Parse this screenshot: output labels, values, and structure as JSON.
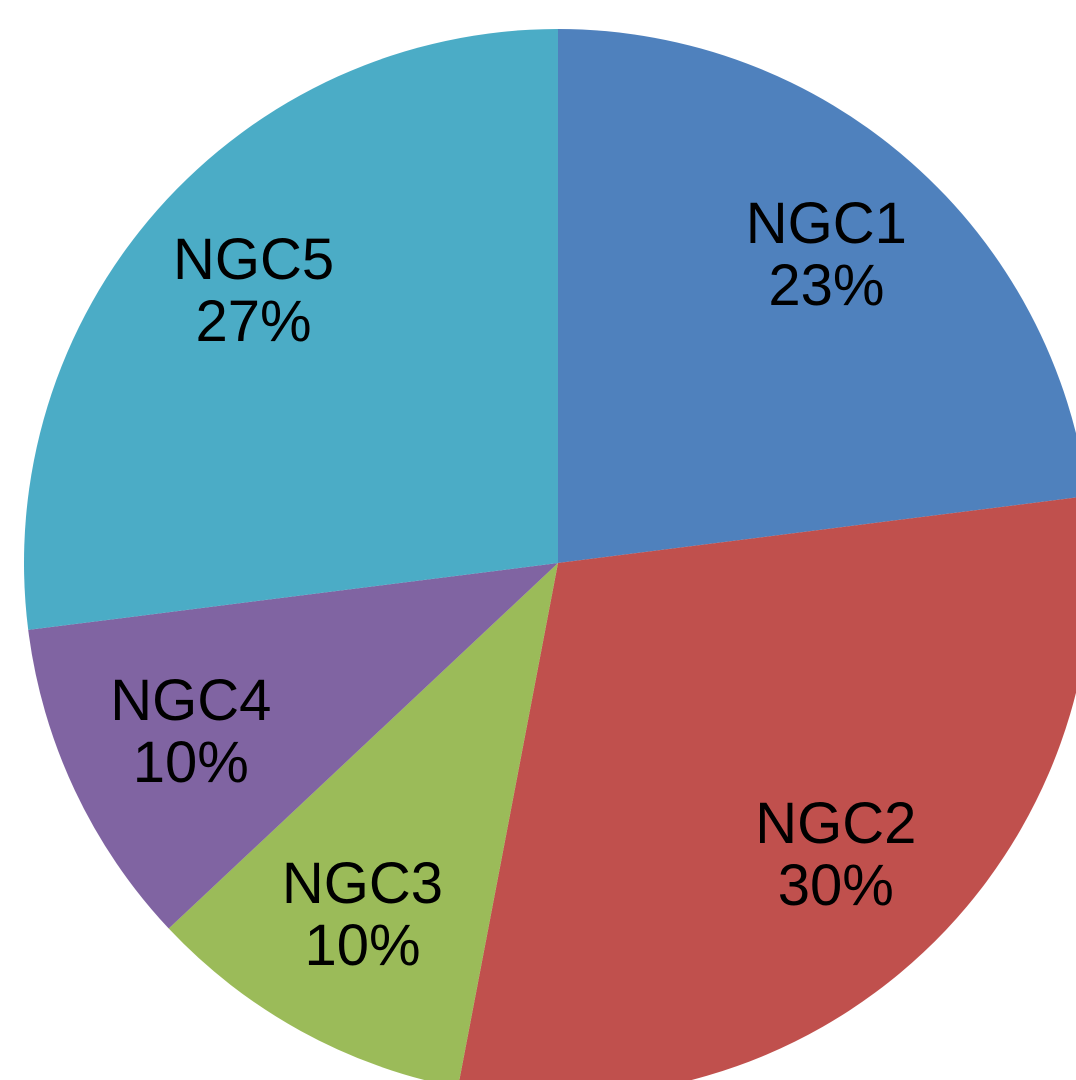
{
  "chart_data": {
    "type": "pie",
    "categories": [
      "NGC1",
      "NGC2",
      "NGC3",
      "NGC4",
      "NGC5"
    ],
    "values": [
      23,
      30,
      10,
      10,
      27
    ],
    "value_labels": [
      "23%",
      "30%",
      "10%",
      "10%",
      "27%"
    ],
    "colors": [
      "#4f81bd",
      "#c0504d",
      "#9bbb59",
      "#8064a2",
      "#4bacc6"
    ]
  }
}
